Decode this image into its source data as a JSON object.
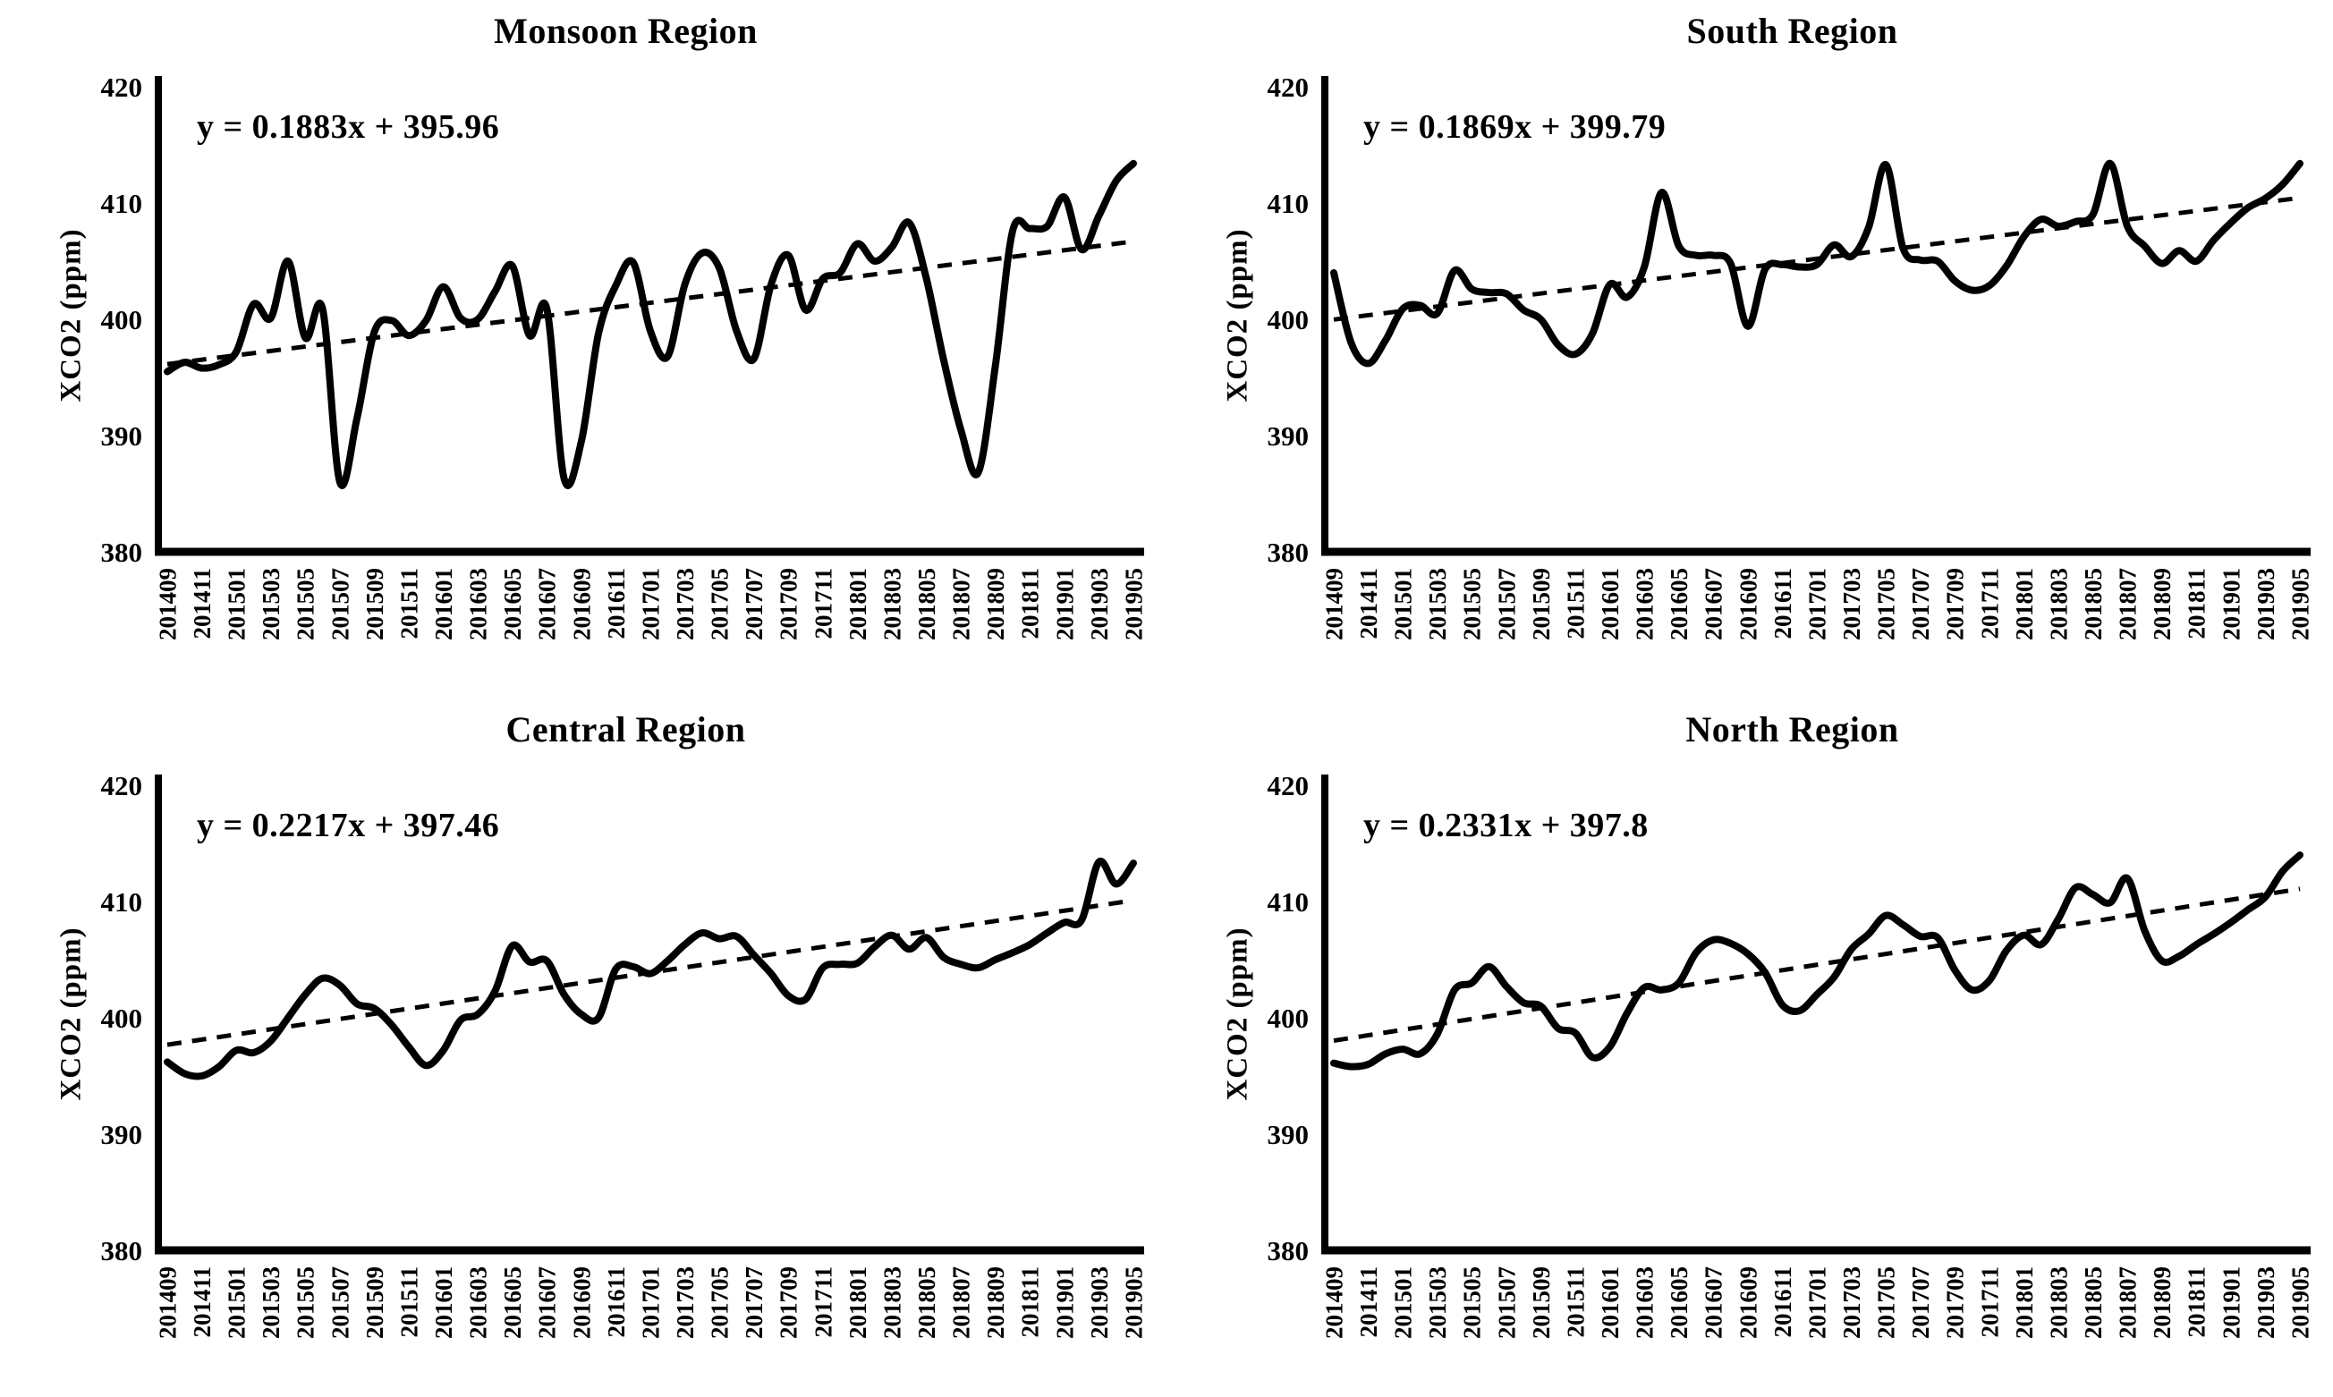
{
  "page": {
    "background": "#ffffff",
    "ink_color": "#000000"
  },
  "chart_data": {
    "type": "line",
    "ylabel": "XCO2 (ppm)",
    "ylim": [
      380,
      420
    ],
    "yticks": [
      380,
      390,
      400,
      410,
      420
    ],
    "grid": false,
    "legend": "none",
    "line_color": "#000000",
    "trend_line_style": "dashed",
    "categories": [
      "201409",
      "201410",
      "201411",
      "201412",
      "201501",
      "201502",
      "201503",
      "201504",
      "201505",
      "201506",
      "201507",
      "201508",
      "201509",
      "201510",
      "201511",
      "201512",
      "201601",
      "201602",
      "201603",
      "201604",
      "201605",
      "201606",
      "201607",
      "201608",
      "201609",
      "201610",
      "201611",
      "201612",
      "201701",
      "201702",
      "201703",
      "201704",
      "201705",
      "201706",
      "201707",
      "201708",
      "201709",
      "201710",
      "201711",
      "201712",
      "201801",
      "201802",
      "201803",
      "201804",
      "201805",
      "201806",
      "201807",
      "201808",
      "201809",
      "201810",
      "201811",
      "201812",
      "201901",
      "201902",
      "201903",
      "201904",
      "201905"
    ],
    "xtick_labels_shown": [
      "201409",
      "201411",
      "201501",
      "201503",
      "201505",
      "201507",
      "201509",
      "201511",
      "201601",
      "201603",
      "201605",
      "201607",
      "201609",
      "201611",
      "201701",
      "201703",
      "201705",
      "201707",
      "201709",
      "201711",
      "201801",
      "201803",
      "201805",
      "201807",
      "201809",
      "201811",
      "201901",
      "201903",
      "201905"
    ],
    "charts": [
      {
        "title": "Monsoon Region",
        "equation_label": "y = 0.1883x + 395.96",
        "trend_slope": 0.1883,
        "trend_intercept": 395.96,
        "values": [
          395.5,
          396.3,
          395.8,
          396.1,
          397.2,
          401.3,
          400.1,
          405.0,
          398.4,
          400.9,
          386.0,
          391.5,
          398.9,
          399.9,
          398.6,
          399.9,
          402.8,
          400.1,
          400.0,
          402.4,
          404.6,
          398.6,
          400.9,
          386.3,
          389.5,
          398.8,
          402.9,
          404.9,
          399.0,
          396.8,
          403.0,
          405.7,
          404.4,
          399.0,
          396.6,
          403.0,
          405.5,
          400.8,
          403.5,
          404.0,
          406.5,
          405.0,
          406.2,
          408.3,
          403.5,
          396.5,
          390.5,
          386.8,
          396.0,
          407.6,
          407.8,
          408.0,
          410.5,
          406.0,
          408.9,
          411.9,
          413.4
        ]
      },
      {
        "title": "South Region",
        "equation_label": "y = 0.1869x + 399.79",
        "trend_slope": 0.1869,
        "trend_intercept": 399.79,
        "values": [
          404.0,
          398.0,
          396.2,
          398.2,
          400.9,
          401.2,
          400.5,
          404.2,
          402.6,
          402.3,
          402.2,
          400.8,
          400.0,
          397.8,
          397.0,
          398.8,
          403.0,
          401.9,
          404.5,
          410.9,
          406.3,
          405.5,
          405.5,
          404.8,
          399.4,
          404.3,
          404.7,
          404.5,
          404.7,
          406.4,
          405.4,
          407.9,
          413.3,
          406.1,
          405.1,
          405.0,
          403.3,
          402.5,
          402.9,
          404.6,
          407.1,
          408.6,
          408.0,
          408.4,
          409.0,
          413.4,
          408.0,
          406.3,
          404.8,
          405.9,
          405.0,
          406.8,
          408.3,
          409.6,
          410.4,
          411.6,
          413.4
        ]
      },
      {
        "title": "Central Region",
        "equation_label": "y = 0.2217x + 397.46",
        "trend_slope": 0.2217,
        "trend_intercept": 397.46,
        "values": [
          396.2,
          395.2,
          395.0,
          395.8,
          397.2,
          397.0,
          398.0,
          400.0,
          402.0,
          403.4,
          402.8,
          401.2,
          400.8,
          399.4,
          397.5,
          395.9,
          397.2,
          399.8,
          400.3,
          402.3,
          406.2,
          404.8,
          404.9,
          402.0,
          400.3,
          400.0,
          404.2,
          404.4,
          403.8,
          404.9,
          406.3,
          407.3,
          406.8,
          407.0,
          405.4,
          403.8,
          401.9,
          401.6,
          404.3,
          404.6,
          404.7,
          406.1,
          407.1,
          405.9,
          406.9,
          405.2,
          404.6,
          404.3,
          405.0,
          405.6,
          406.3,
          407.3,
          408.2,
          408.4,
          413.4,
          411.5,
          413.3
        ]
      },
      {
        "title": "North Region",
        "equation_label": "y = 0.2331x + 397.8",
        "trend_slope": 0.2331,
        "trend_intercept": 397.8,
        "values": [
          396.1,
          395.8,
          396.0,
          396.9,
          397.3,
          396.9,
          398.6,
          402.4,
          403.0,
          404.4,
          402.7,
          401.3,
          401.0,
          399.1,
          398.7,
          396.6,
          397.5,
          400.4,
          402.6,
          402.4,
          403.0,
          405.6,
          406.7,
          406.4,
          405.5,
          403.9,
          401.1,
          400.6,
          402.0,
          403.5,
          405.9,
          407.2,
          408.8,
          408.0,
          407.0,
          406.9,
          404.1,
          402.4,
          403.2,
          405.8,
          407.1,
          406.3,
          408.5,
          411.2,
          410.6,
          409.9,
          412.0,
          407.5,
          404.9,
          405.3,
          406.3,
          407.2,
          408.2,
          409.3,
          410.4,
          412.6,
          414.0
        ]
      }
    ]
  }
}
